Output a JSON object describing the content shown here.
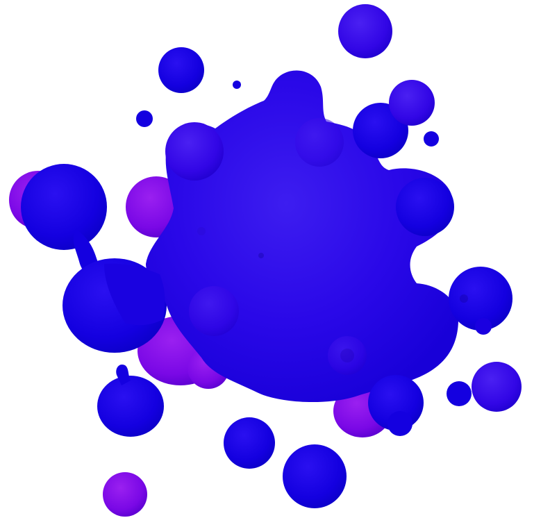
{
  "scene": {
    "subject": "metaballs",
    "background_color": "#ffffff",
    "palette": {
      "deep_blue": "#1000e8",
      "mid_indigo": "#3a08e6",
      "violet": "#6f08e8",
      "magenta_violet": "#8a10e6",
      "highlight": "#4a2af0",
      "shadow": "#0e00c8"
    }
  }
}
